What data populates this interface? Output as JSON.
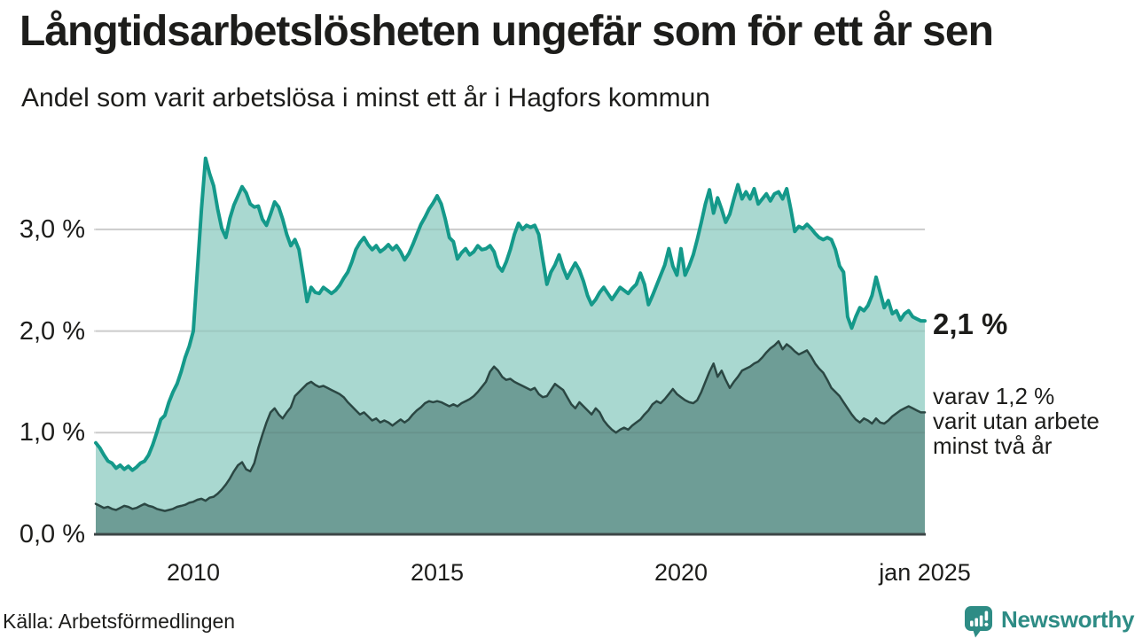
{
  "header": {
    "title": "Långtidsarbetslösheten ungefär som för ett år sen",
    "subtitle": "Andel som varit arbetslösa i minst ett år i Hagfors kommun"
  },
  "chart_data": {
    "type": "area",
    "title": "Långtidsarbetslösheten ungefär som för ett år sen",
    "subtitle": "Andel som varit arbetslösa i minst ett år i Hagfors kommun",
    "unit": "%",
    "x_start": "2008-01",
    "x_end": "2025-01",
    "x_resolution": "monthly",
    "x_tick_labels": [
      "2010",
      "2015",
      "2020",
      "jan 2025"
    ],
    "x_tick_month_index": [
      24,
      84,
      144,
      204
    ],
    "y_tick_labels": [
      "0,0 %",
      "1,0 %",
      "2,0 %",
      "3,0 %"
    ],
    "y_tick_values": [
      0,
      1,
      2,
      3
    ],
    "ylim": [
      0,
      3.75
    ],
    "grid": "horizontal",
    "legend_position": "none",
    "series": [
      {
        "name": "Andel arbetslösa minst ett år",
        "latest_label": "2,1 %",
        "line_color": "#14998a",
        "fill_color": "#a9d8d0",
        "values": [
          0.9,
          0.85,
          0.78,
          0.72,
          0.7,
          0.65,
          0.68,
          0.64,
          0.67,
          0.63,
          0.66,
          0.7,
          0.72,
          0.78,
          0.88,
          1.0,
          1.13,
          1.17,
          1.3,
          1.4,
          1.48,
          1.6,
          1.74,
          1.85,
          2.0,
          2.6,
          3.2,
          3.7,
          3.55,
          3.43,
          3.2,
          3.01,
          2.92,
          3.11,
          3.24,
          3.33,
          3.42,
          3.36,
          3.25,
          3.22,
          3.23,
          3.1,
          3.04,
          3.15,
          3.27,
          3.22,
          3.1,
          2.95,
          2.84,
          2.9,
          2.8,
          2.55,
          2.29,
          2.43,
          2.38,
          2.37,
          2.43,
          2.4,
          2.37,
          2.4,
          2.45,
          2.52,
          2.58,
          2.68,
          2.8,
          2.87,
          2.92,
          2.85,
          2.8,
          2.84,
          2.78,
          2.81,
          2.85,
          2.8,
          2.84,
          2.78,
          2.7,
          2.76,
          2.85,
          2.95,
          3.05,
          3.12,
          3.2,
          3.26,
          3.33,
          3.25,
          3.1,
          2.92,
          2.88,
          2.71,
          2.77,
          2.81,
          2.75,
          2.78,
          2.84,
          2.8,
          2.81,
          2.84,
          2.78,
          2.64,
          2.59,
          2.68,
          2.8,
          2.95,
          3.06,
          3.0,
          3.04,
          3.02,
          3.04,
          2.95,
          2.7,
          2.46,
          2.58,
          2.65,
          2.75,
          2.62,
          2.52,
          2.6,
          2.67,
          2.6,
          2.49,
          2.35,
          2.26,
          2.31,
          2.38,
          2.43,
          2.37,
          2.31,
          2.37,
          2.43,
          2.4,
          2.37,
          2.42,
          2.46,
          2.57,
          2.46,
          2.26,
          2.35,
          2.45,
          2.55,
          2.65,
          2.81,
          2.64,
          2.55,
          2.81,
          2.55,
          2.64,
          2.75,
          2.9,
          3.07,
          3.25,
          3.39,
          3.16,
          3.31,
          3.2,
          3.07,
          3.15,
          3.3,
          3.44,
          3.3,
          3.37,
          3.3,
          3.4,
          3.25,
          3.3,
          3.35,
          3.28,
          3.35,
          3.37,
          3.3,
          3.4,
          3.2,
          2.98,
          3.03,
          3.01,
          3.05,
          3.01,
          2.96,
          2.92,
          2.9,
          2.92,
          2.9,
          2.8,
          2.64,
          2.58,
          2.14,
          2.03,
          2.14,
          2.23,
          2.2,
          2.25,
          2.35,
          2.53,
          2.38,
          2.23,
          2.3,
          2.17,
          2.2,
          2.11,
          2.17,
          2.2,
          2.14,
          2.12,
          2.1,
          2.1
        ]
      },
      {
        "name": "varav utan arbete minst två år",
        "latest_label": "1,2 %",
        "line_color": "#2b4743",
        "fill_color": "#6e9d96",
        "values": [
          0.3,
          0.28,
          0.26,
          0.27,
          0.25,
          0.24,
          0.26,
          0.28,
          0.27,
          0.25,
          0.26,
          0.28,
          0.3,
          0.28,
          0.27,
          0.25,
          0.24,
          0.23,
          0.24,
          0.25,
          0.27,
          0.28,
          0.29,
          0.31,
          0.32,
          0.34,
          0.35,
          0.33,
          0.36,
          0.37,
          0.4,
          0.44,
          0.49,
          0.55,
          0.62,
          0.68,
          0.71,
          0.64,
          0.62,
          0.7,
          0.85,
          0.98,
          1.1,
          1.2,
          1.24,
          1.18,
          1.14,
          1.2,
          1.25,
          1.36,
          1.4,
          1.44,
          1.48,
          1.5,
          1.47,
          1.45,
          1.46,
          1.44,
          1.42,
          1.4,
          1.38,
          1.35,
          1.3,
          1.26,
          1.22,
          1.18,
          1.2,
          1.16,
          1.12,
          1.14,
          1.1,
          1.12,
          1.1,
          1.07,
          1.1,
          1.13,
          1.1,
          1.13,
          1.18,
          1.22,
          1.25,
          1.29,
          1.31,
          1.3,
          1.31,
          1.3,
          1.28,
          1.26,
          1.28,
          1.26,
          1.29,
          1.31,
          1.33,
          1.36,
          1.4,
          1.45,
          1.5,
          1.6,
          1.65,
          1.61,
          1.55,
          1.52,
          1.53,
          1.5,
          1.48,
          1.46,
          1.44,
          1.42,
          1.44,
          1.38,
          1.35,
          1.36,
          1.42,
          1.48,
          1.45,
          1.42,
          1.35,
          1.28,
          1.24,
          1.3,
          1.26,
          1.22,
          1.18,
          1.24,
          1.2,
          1.12,
          1.07,
          1.03,
          1.0,
          1.03,
          1.05,
          1.03,
          1.07,
          1.1,
          1.13,
          1.18,
          1.22,
          1.28,
          1.31,
          1.29,
          1.33,
          1.38,
          1.43,
          1.38,
          1.35,
          1.32,
          1.3,
          1.29,
          1.32,
          1.4,
          1.5,
          1.6,
          1.68,
          1.55,
          1.61,
          1.52,
          1.44,
          1.5,
          1.55,
          1.61,
          1.63,
          1.65,
          1.68,
          1.7,
          1.74,
          1.79,
          1.83,
          1.86,
          1.9,
          1.82,
          1.87,
          1.84,
          1.8,
          1.77,
          1.79,
          1.81,
          1.75,
          1.68,
          1.63,
          1.59,
          1.52,
          1.44,
          1.4,
          1.36,
          1.3,
          1.24,
          1.18,
          1.13,
          1.1,
          1.14,
          1.12,
          1.09,
          1.14,
          1.1,
          1.09,
          1.12,
          1.16,
          1.19,
          1.22,
          1.24,
          1.26,
          1.24,
          1.22,
          1.2,
          1.2
        ]
      }
    ]
  },
  "annotations": {
    "latest_total": "2,1 %",
    "note_lines": [
      "varav 1,2 %",
      "varit utan arbete",
      "minst två år"
    ]
  },
  "footer": {
    "source": "Källa: Arbetsförmedlingen",
    "brand": "Newsworthy"
  },
  "colors": {
    "accent_teal": "#14998a",
    "light_fill": "#a9d8d0",
    "dark_fill": "#6e9d96",
    "dark_line": "#2b4743",
    "gridline": "#dcdcdc",
    "baseline": "#3d4647",
    "text": "#1d1d1b",
    "brand_teal": "#2e8c85"
  }
}
